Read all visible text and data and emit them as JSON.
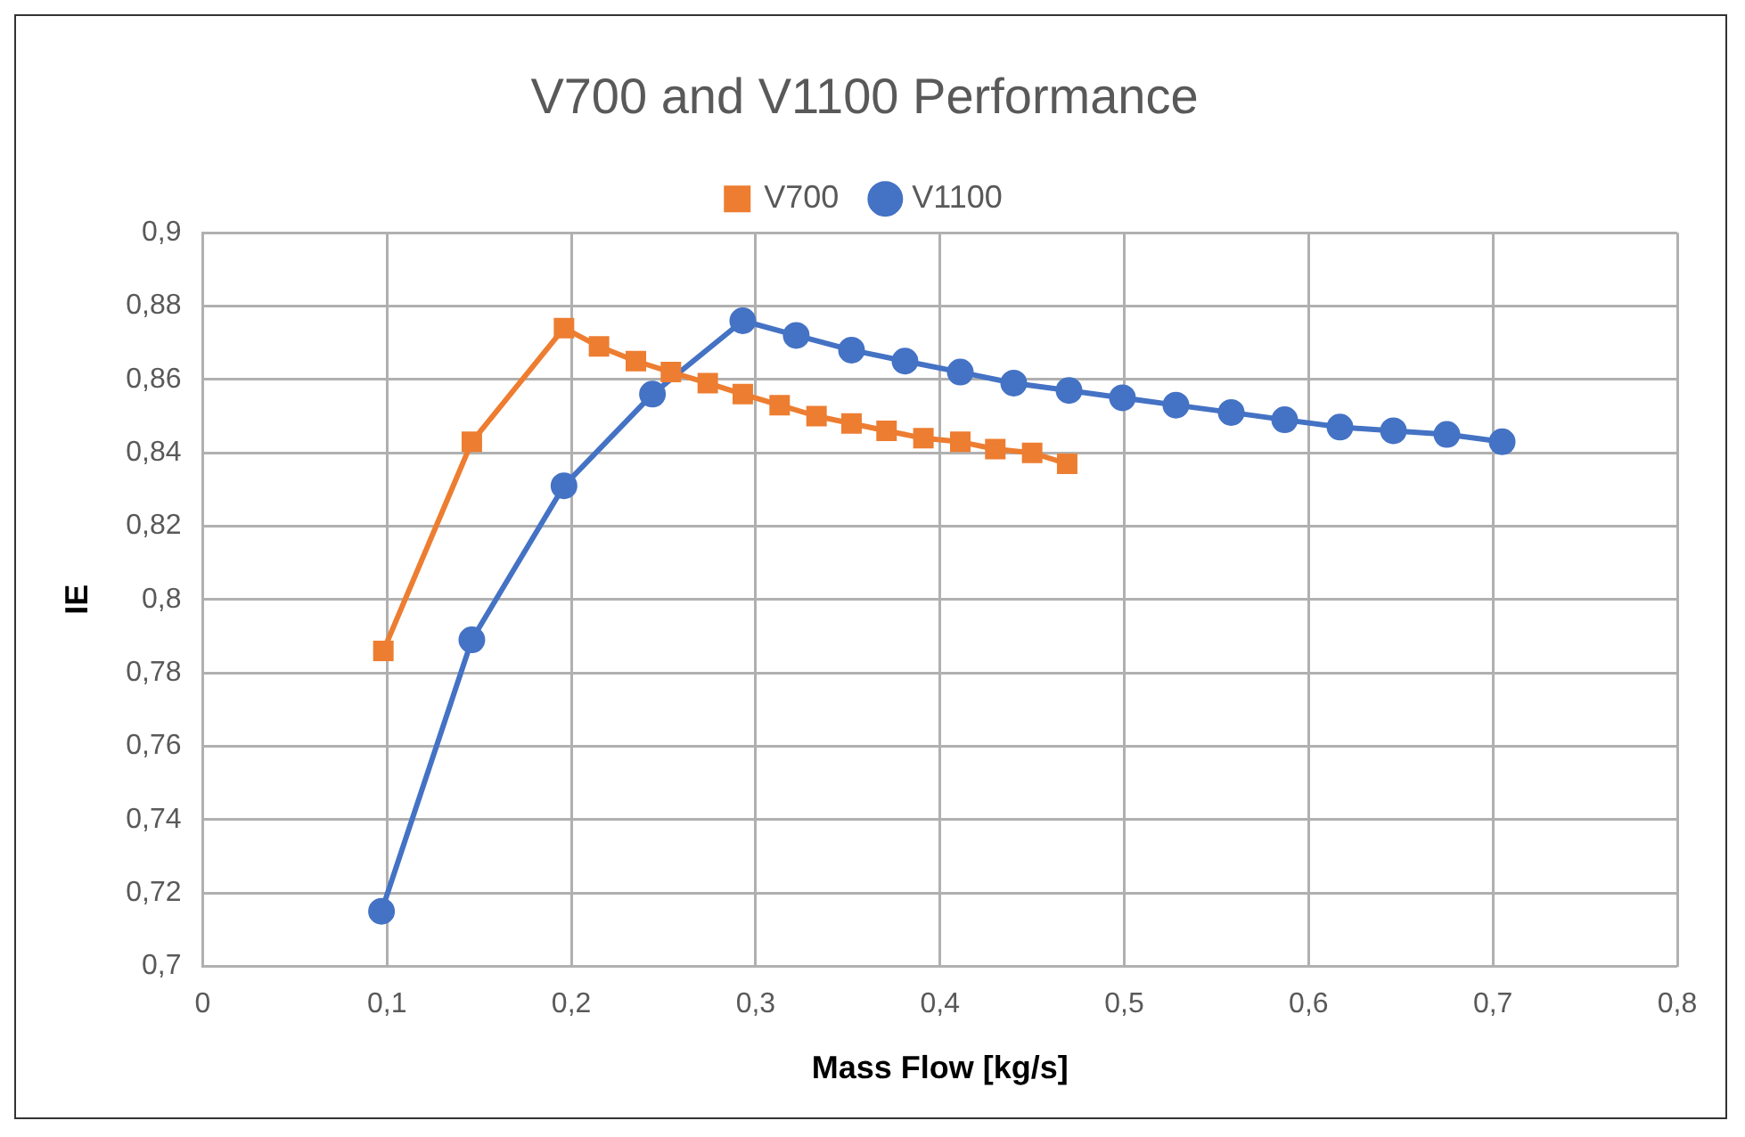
{
  "chart_data": {
    "type": "line",
    "title": "V700 and V1100 Performance",
    "xlabel": "Mass Flow [kg/s]",
    "ylabel": "IE",
    "legend": "top",
    "grid": true,
    "line_style": "solid",
    "xlim": [
      0,
      0.8
    ],
    "xticks": [
      0,
      {
        "value": 0.1,
        "label": "0,1"
      },
      {
        "value": 0.2,
        "label": "0,2"
      },
      {
        "value": 0.3,
        "label": "0,3"
      },
      {
        "value": 0.4,
        "label": "0,4"
      },
      {
        "value": 0.5,
        "label": "0,5"
      },
      {
        "value": 0.6,
        "label": "0,6"
      },
      {
        "value": 0.7,
        "label": "0,7"
      },
      {
        "value": 0.8,
        "label": "0,8"
      }
    ],
    "ylim": [
      0.7,
      0.9
    ],
    "yticks": [
      {
        "value": 0.7,
        "label": "0,7"
      },
      {
        "value": 0.72,
        "label": "0,72"
      },
      {
        "value": 0.74,
        "label": "0,74"
      },
      {
        "value": 0.76,
        "label": "0,76"
      },
      {
        "value": 0.78,
        "label": "0,78"
      },
      {
        "value": 0.8,
        "label": "0,8"
      },
      {
        "value": 0.82,
        "label": "0,82"
      },
      {
        "value": 0.84,
        "label": "0,84"
      },
      {
        "value": 0.86,
        "label": "0,86"
      },
      {
        "value": 0.88,
        "label": "0,88"
      },
      {
        "value": 0.9,
        "label": "0,9"
      }
    ],
    "series": [
      {
        "name": "V700",
        "color": "#ed7d31",
        "marker": "square",
        "x": [
          0.098,
          0.146,
          0.196,
          0.215,
          0.235,
          0.254,
          0.274,
          0.293,
          0.313,
          0.333,
          0.352,
          0.371,
          0.391,
          0.411,
          0.43,
          0.45,
          0.469
        ],
        "values": [
          0.786,
          0.843,
          0.874,
          0.869,
          0.865,
          0.862,
          0.859,
          0.856,
          0.853,
          0.85,
          0.848,
          0.846,
          0.844,
          0.843,
          0.841,
          0.84,
          0.837
        ]
      },
      {
        "name": "V1100",
        "color": "#4472c4",
        "marker": "circle",
        "x": [
          0.097,
          0.146,
          0.196,
          0.244,
          0.293,
          0.322,
          0.352,
          0.381,
          0.411,
          0.44,
          0.47,
          0.499,
          0.528,
          0.558,
          0.587,
          0.617,
          0.646,
          0.675,
          0.705
        ],
        "values": [
          0.715,
          0.789,
          0.831,
          0.856,
          0.876,
          0.872,
          0.868,
          0.865,
          0.862,
          0.859,
          0.857,
          0.855,
          0.853,
          0.851,
          0.849,
          0.847,
          0.846,
          0.845,
          0.843
        ]
      }
    ]
  }
}
